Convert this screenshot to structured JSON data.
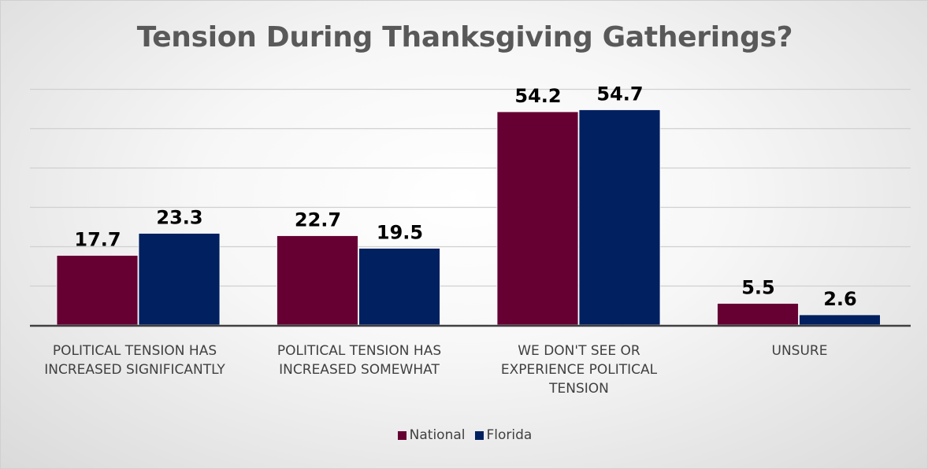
{
  "chart_data": {
    "type": "bar",
    "title": "Tension During Thanksgiving Gatherings?",
    "categories": [
      "POLITICAL TENSION HAS\nINCREASED SIGNIFICANTLY",
      "POLITICAL TENSION HAS\nINCREASED SOMEWHAT",
      "WE DON'T SEE OR\nEXPERIENCE POLITICAL\nTENSION",
      "UNSURE"
    ],
    "series": [
      {
        "name": "National",
        "values": [
          17.7,
          22.7,
          54.2,
          5.5
        ],
        "labels": [
          "17.7",
          "22.7",
          "54.2",
          "5.5"
        ],
        "color": "#660033"
      },
      {
        "name": "Florida",
        "values": [
          23.3,
          19.5,
          54.7,
          2.6
        ],
        "labels": [
          "23.3",
          "19.5",
          "54.7",
          "2.6"
        ],
        "color": "#002060"
      }
    ],
    "ylim": [
      0,
      60
    ],
    "grid": true,
    "gridline_step": 10,
    "y_axis_labels_shown": false,
    "legend_position": "bottom",
    "xlabel": "",
    "ylabel": ""
  }
}
